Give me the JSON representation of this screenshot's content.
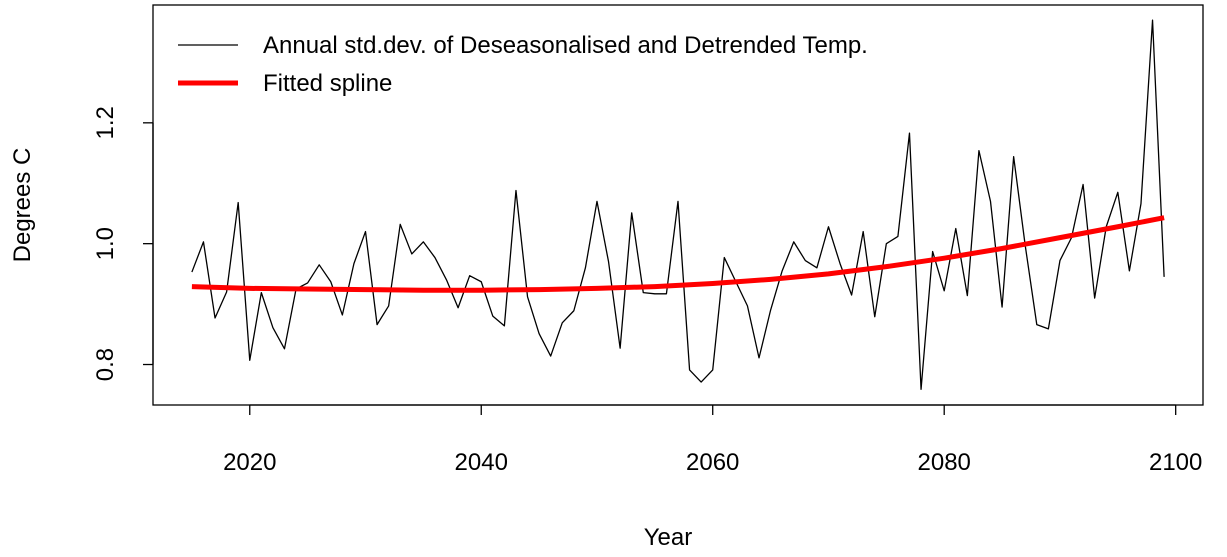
{
  "chart_data": {
    "type": "line",
    "xlabel": "Year",
    "ylabel": "Degrees C",
    "xlim": [
      2011.64,
      2102.36
    ],
    "ylim": [
      0.733,
      1.395
    ],
    "xticks": [
      2020,
      2040,
      2060,
      2080,
      2100
    ],
    "yticks": [
      0.8,
      {
        "value": 1.0,
        "label": "1.0"
      },
      1.2
    ],
    "legend": "top-left",
    "series": [
      {
        "name": "Annual std.dev. of Deseasonalised and Detrended Temp.",
        "color": "#000000",
        "linewidth": 1.3,
        "x": [
          2015,
          2016,
          2017,
          2018,
          2019,
          2020,
          2021,
          2022,
          2023,
          2024,
          2025,
          2026,
          2027,
          2028,
          2029,
          2030,
          2031,
          2032,
          2033,
          2034,
          2035,
          2036,
          2037,
          2038,
          2039,
          2040,
          2041,
          2042,
          2043,
          2044,
          2045,
          2046,
          2047,
          2048,
          2049,
          2050,
          2051,
          2052,
          2053,
          2054,
          2055,
          2056,
          2057,
          2058,
          2059,
          2060,
          2061,
          2062,
          2063,
          2064,
          2065,
          2066,
          2067,
          2068,
          2069,
          2070,
          2071,
          2072,
          2073,
          2074,
          2075,
          2076,
          2077,
          2078,
          2079,
          2080,
          2081,
          2082,
          2083,
          2084,
          2085,
          2086,
          2087,
          2088,
          2089,
          2090,
          2091,
          2092,
          2093,
          2094,
          2095,
          2096,
          2097,
          2098,
          2099
        ],
        "values": [
          0.953,
          1.003,
          0.877,
          0.92,
          1.068,
          0.807,
          0.919,
          0.861,
          0.826,
          0.925,
          0.935,
          0.965,
          0.937,
          0.882,
          0.967,
          1.02,
          0.866,
          0.897,
          1.032,
          0.983,
          1.003,
          0.977,
          0.94,
          0.894,
          0.947,
          0.937,
          0.88,
          0.864,
          1.088,
          0.912,
          0.851,
          0.814,
          0.869,
          0.889,
          0.96,
          1.07,
          0.97,
          0.827,
          1.051,
          0.919,
          0.917,
          0.917,
          1.07,
          0.791,
          0.771,
          0.791,
          0.977,
          0.937,
          0.897,
          0.811,
          0.89,
          0.955,
          1.003,
          0.972,
          0.96,
          1.028,
          0.967,
          0.915,
          1.02,
          0.879,
          1.0,
          1.012,
          1.183,
          0.759,
          0.987,
          0.922,
          1.025,
          0.914,
          1.154,
          1.07,
          0.895,
          1.144,
          0.997,
          0.866,
          0.859,
          0.972,
          1.01,
          1.098,
          0.91,
          1.028,
          1.085,
          0.955,
          1.066,
          1.37,
          0.945
        ]
      },
      {
        "name": "Fitted spline",
        "color": "#ff0000",
        "linewidth": 5,
        "x": [
          2015,
          2020,
          2025,
          2030,
          2035,
          2040,
          2045,
          2050,
          2055,
          2060,
          2065,
          2070,
          2075,
          2080,
          2085,
          2090,
          2095,
          2099
        ],
        "values": [
          0.929,
          0.926,
          0.925,
          0.924,
          0.923,
          0.923,
          0.924,
          0.926,
          0.929,
          0.934,
          0.941,
          0.95,
          0.962,
          0.976,
          0.992,
          1.01,
          1.028,
          1.043
        ]
      }
    ]
  }
}
